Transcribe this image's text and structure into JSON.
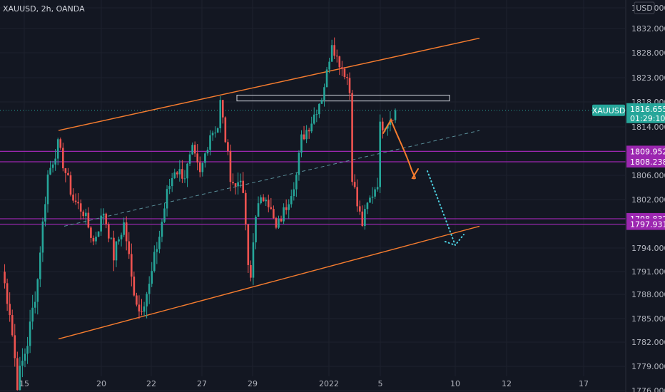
{
  "header": {
    "title": "XAUUSD, 2h, OANDA",
    "currency": "USD"
  },
  "colors": {
    "background": "#131722",
    "up": "#26a69a",
    "down": "#ef5350",
    "channel": "#f57c2f",
    "level": "#9c27b0",
    "price": "#26a69a",
    "text": "#b2b5be"
  },
  "price_tag": {
    "symbol": "XAUUSD",
    "price": "1816.655",
    "countdown": "01:29:10"
  },
  "levels": [
    "1809.952",
    "1808.238",
    "1798.832",
    "1797.931"
  ],
  "chart_data": {
    "type": "candlestick",
    "title": "XAUUSD, 2h, OANDA",
    "y_axis": {
      "range": [
        1776,
        1836
      ],
      "ticks": [
        "1776.000",
        "1779.000",
        "1782.000",
        "1785.000",
        "1788.000",
        "1791.000",
        "1794.000",
        "1798.000",
        "1802.000",
        "1806.000",
        "1810.000",
        "1814.000",
        "1818.000",
        "1823.000",
        "1828.000",
        "1832.000",
        "1836.000"
      ]
    },
    "x_axis": {
      "ticks": [
        "15",
        "20",
        "22",
        "27",
        "29",
        "2022",
        "5",
        "10",
        "12",
        "17"
      ]
    },
    "last_price": 1816.655,
    "horizontal_levels": [
      1809.952,
      1808.238,
      1798.832,
      1797.931
    ],
    "ohlc_waypoints": [
      [
        0,
        1791
      ],
      [
        3,
        1786
      ],
      [
        6,
        1777
      ],
      [
        10,
        1782
      ],
      [
        14,
        1790
      ],
      [
        18,
        1806
      ],
      [
        22,
        1811
      ],
      [
        24,
        1808
      ],
      [
        28,
        1802
      ],
      [
        32,
        1800
      ],
      [
        36,
        1795
      ],
      [
        40,
        1800
      ],
      [
        44,
        1793
      ],
      [
        48,
        1798
      ],
      [
        51,
        1790
      ],
      [
        54,
        1786
      ],
      [
        58,
        1789
      ],
      [
        62,
        1796
      ],
      [
        65,
        1803
      ],
      [
        68,
        1807
      ],
      [
        72,
        1806
      ],
      [
        75,
        1810
      ],
      [
        78,
        1806
      ],
      [
        82,
        1813
      ],
      [
        85,
        1814
      ],
      [
        86,
        1818
      ],
      [
        88,
        1812
      ],
      [
        90,
        1806
      ],
      [
        92,
        1804
      ],
      [
        94,
        1806
      ],
      [
        96,
        1798
      ],
      [
        97,
        1791
      ],
      [
        98,
        1790
      ],
      [
        100,
        1800
      ],
      [
        104,
        1803
      ],
      [
        108,
        1797
      ],
      [
        112,
        1801
      ],
      [
        116,
        1806
      ],
      [
        118,
        1812
      ],
      [
        122,
        1815
      ],
      [
        126,
        1819
      ],
      [
        128,
        1824
      ],
      [
        130,
        1830
      ],
      [
        132,
        1827
      ],
      [
        134,
        1825
      ],
      [
        136,
        1823
      ],
      [
        137,
        1820
      ],
      [
        138,
        1806
      ],
      [
        140,
        1801
      ],
      [
        142,
        1798
      ],
      [
        144,
        1801
      ],
      [
        146,
        1803
      ],
      [
        148,
        1805
      ],
      [
        149,
        1814
      ],
      [
        152,
        1815
      ],
      [
        155,
        1816.655
      ]
    ]
  }
}
